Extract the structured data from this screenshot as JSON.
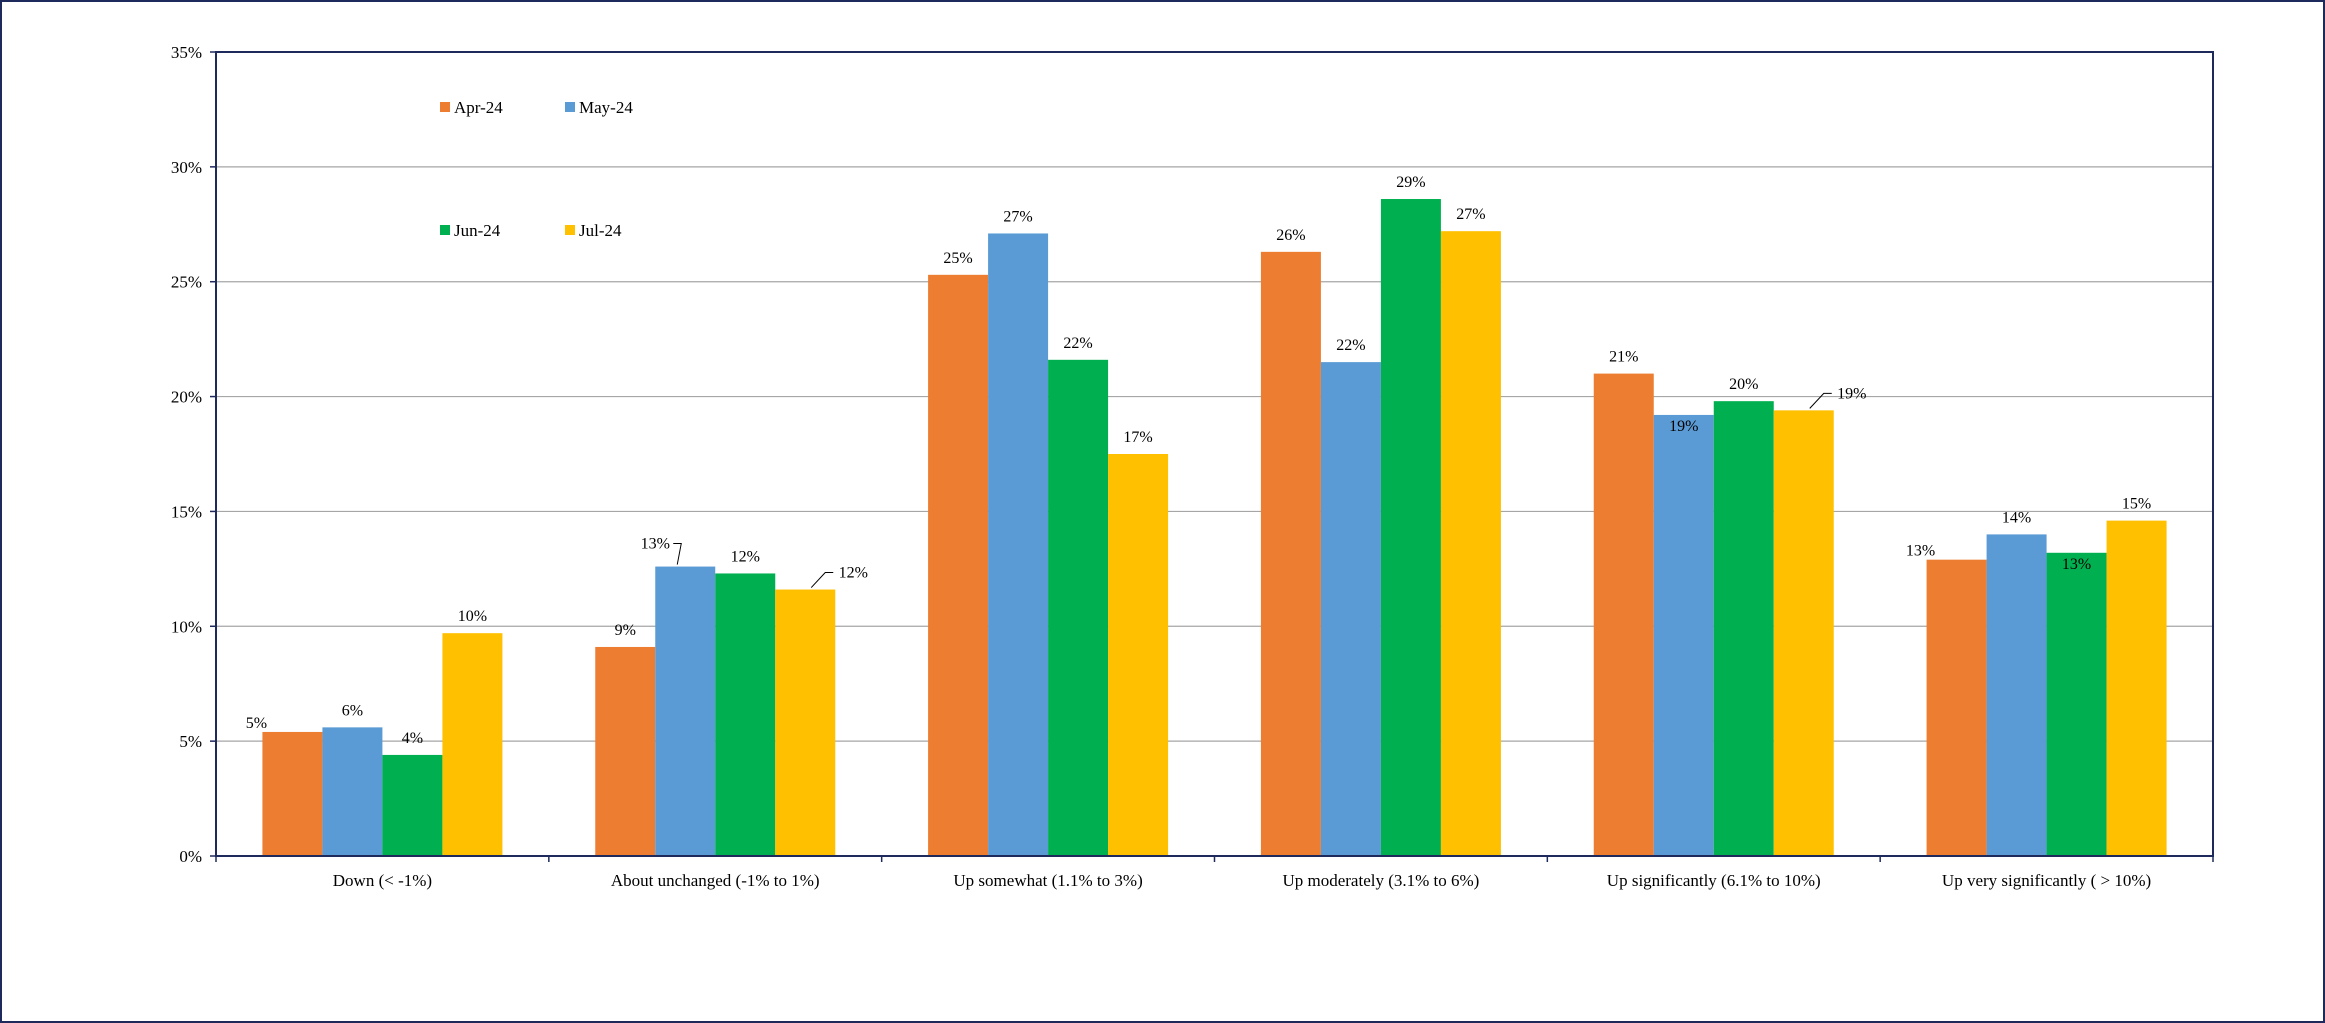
{
  "chart_data": {
    "type": "bar",
    "title": "",
    "xlabel": "",
    "ylabel": "",
    "ylim": [
      0,
      35
    ],
    "y_tick_labels": [
      "0%",
      "5%",
      "10%",
      "15%",
      "20%",
      "25%",
      "30%",
      "35%"
    ],
    "grid": true,
    "legend_position": "top-left",
    "categories": [
      "Down (< -1%)",
      "About unchanged (-1% to 1%)",
      "Up somewhat (1.1% to 3%)",
      "Up moderately (3.1% to 6%)",
      "Up significantly (6.1% to 10%)",
      "Up very significantly ( > 10%)"
    ],
    "series": [
      {
        "name": "Apr-24",
        "color": "#ed7d31",
        "values": [
          5.4,
          9.1,
          25.3,
          26.3,
          21.0,
          12.9
        ],
        "labels": [
          "5%",
          "9%",
          "25%",
          "26%",
          "21%",
          "13%"
        ]
      },
      {
        "name": "May-24",
        "color": "#5b9bd5",
        "values": [
          5.6,
          12.6,
          27.1,
          21.5,
          19.2,
          14.0
        ],
        "labels": [
          "6%",
          "13%",
          "27%",
          "22%",
          "19%",
          "14%"
        ]
      },
      {
        "name": "Jun-24",
        "color": "#00b050",
        "values": [
          4.4,
          12.3,
          21.6,
          28.6,
          19.8,
          13.2
        ],
        "labels": [
          "4%",
          "12%",
          "22%",
          "29%",
          "20%",
          "13%"
        ]
      },
      {
        "name": "Jul-24",
        "color": "#ffc000",
        "values": [
          9.7,
          11.6,
          17.5,
          27.2,
          19.4,
          14.6
        ],
        "labels": [
          "10%",
          "12%",
          "17%",
          "27%",
          "19%",
          "15%"
        ]
      }
    ]
  }
}
